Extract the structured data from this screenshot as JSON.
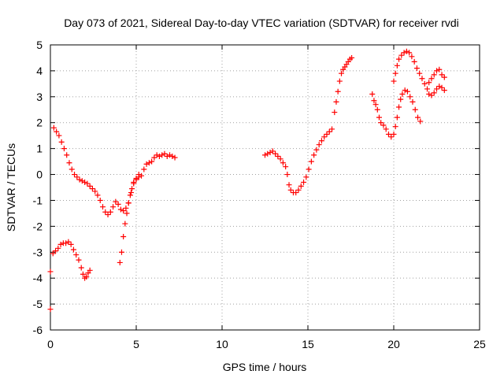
{
  "chart_data": {
    "type": "scatter",
    "title": "Day 073 of 2021, Sidereal Day-to-day VTEC variation (SDTVAR) for receiver rvdi",
    "xlabel": "GPS time / hours",
    "ylabel": "SDTVAR / TECUs",
    "xlim": [
      0,
      25
    ],
    "ylim": [
      -6,
      5
    ],
    "x_ticks": [
      0,
      5,
      10,
      15,
      20,
      25
    ],
    "y_ticks": [
      -6,
      -5,
      -4,
      -3,
      -2,
      -1,
      0,
      1,
      2,
      3,
      4,
      5
    ],
    "grid": true,
    "legend": "none",
    "marker": "plus",
    "color": "#ff0000",
    "series": [
      {
        "points": [
          [
            0.0,
            -3.75
          ],
          [
            0.0,
            -5.2
          ],
          [
            0.15,
            -3.05
          ],
          [
            0.3,
            -2.95
          ],
          [
            0.45,
            -2.85
          ],
          [
            0.6,
            -2.7
          ],
          [
            0.75,
            -2.65
          ],
          [
            0.9,
            -2.65
          ],
          [
            1.05,
            -2.6
          ],
          [
            1.2,
            -2.7
          ],
          [
            1.35,
            -2.9
          ],
          [
            1.5,
            -3.1
          ],
          [
            1.65,
            -3.3
          ],
          [
            1.8,
            -3.6
          ],
          [
            1.9,
            -3.85
          ],
          [
            2.0,
            -4.0
          ],
          [
            2.1,
            -3.95
          ],
          [
            2.2,
            -3.8
          ],
          [
            2.3,
            -3.7
          ],
          [
            0.2,
            1.8
          ],
          [
            0.35,
            1.65
          ],
          [
            0.5,
            1.5
          ],
          [
            0.65,
            1.25
          ],
          [
            0.8,
            1.0
          ],
          [
            0.95,
            0.75
          ],
          [
            1.1,
            0.45
          ],
          [
            1.25,
            0.2
          ],
          [
            1.4,
            0.0
          ],
          [
            1.55,
            -0.1
          ],
          [
            1.7,
            -0.2
          ],
          [
            1.85,
            -0.25
          ],
          [
            2.0,
            -0.3
          ],
          [
            2.15,
            -0.35
          ],
          [
            2.3,
            -0.45
          ],
          [
            2.45,
            -0.55
          ],
          [
            2.6,
            -0.65
          ],
          [
            2.75,
            -0.8
          ],
          [
            2.9,
            -1.0
          ],
          [
            3.05,
            -1.25
          ],
          [
            3.2,
            -1.45
          ],
          [
            3.35,
            -1.55
          ],
          [
            3.5,
            -1.45
          ],
          [
            3.65,
            -1.25
          ],
          [
            3.8,
            -1.05
          ],
          [
            3.95,
            -1.15
          ],
          [
            4.1,
            -1.35
          ],
          [
            4.25,
            -1.4
          ],
          [
            4.4,
            -1.3
          ],
          [
            4.55,
            -1.1
          ],
          [
            4.7,
            -0.7
          ],
          [
            4.85,
            -0.35
          ],
          [
            5.0,
            -0.2
          ],
          [
            5.15,
            -0.1
          ],
          [
            4.05,
            -3.4
          ],
          [
            4.15,
            -3.0
          ],
          [
            4.25,
            -2.4
          ],
          [
            4.35,
            -1.9
          ],
          [
            4.45,
            -1.5
          ],
          [
            4.55,
            -1.1
          ],
          [
            4.65,
            -0.8
          ],
          [
            4.75,
            -0.55
          ],
          [
            4.85,
            -0.3
          ],
          [
            5.0,
            -0.15
          ],
          [
            5.15,
            0.0
          ],
          [
            5.3,
            -0.05
          ],
          [
            5.45,
            0.2
          ],
          [
            5.6,
            0.4
          ],
          [
            5.75,
            0.45
          ],
          [
            5.9,
            0.5
          ],
          [
            6.05,
            0.65
          ],
          [
            6.2,
            0.75
          ],
          [
            6.35,
            0.7
          ],
          [
            6.5,
            0.75
          ],
          [
            6.65,
            0.8
          ],
          [
            6.8,
            0.7
          ],
          [
            6.95,
            0.75
          ],
          [
            7.1,
            0.7
          ],
          [
            7.25,
            0.65
          ],
          [
            12.5,
            0.75
          ],
          [
            12.65,
            0.8
          ],
          [
            12.8,
            0.85
          ],
          [
            12.95,
            0.9
          ],
          [
            13.1,
            0.8
          ],
          [
            13.25,
            0.7
          ],
          [
            13.4,
            0.6
          ],
          [
            13.55,
            0.45
          ],
          [
            13.7,
            0.3
          ],
          [
            13.8,
            0.0
          ],
          [
            13.9,
            -0.4
          ],
          [
            14.0,
            -0.6
          ],
          [
            14.15,
            -0.7
          ],
          [
            14.3,
            -0.7
          ],
          [
            14.45,
            -0.6
          ],
          [
            14.6,
            -0.45
          ],
          [
            14.75,
            -0.3
          ],
          [
            14.9,
            -0.1
          ],
          [
            15.05,
            0.2
          ],
          [
            15.2,
            0.5
          ],
          [
            15.35,
            0.75
          ],
          [
            15.5,
            0.95
          ],
          [
            15.65,
            1.15
          ],
          [
            15.8,
            1.3
          ],
          [
            15.95,
            1.45
          ],
          [
            16.1,
            1.55
          ],
          [
            16.25,
            1.65
          ],
          [
            16.4,
            1.75
          ],
          [
            16.55,
            2.4
          ],
          [
            16.65,
            2.8
          ],
          [
            16.75,
            3.2
          ],
          [
            16.85,
            3.6
          ],
          [
            16.95,
            3.9
          ],
          [
            17.05,
            4.05
          ],
          [
            17.15,
            4.15
          ],
          [
            17.25,
            4.25
          ],
          [
            17.35,
            4.35
          ],
          [
            17.45,
            4.45
          ],
          [
            17.55,
            4.5
          ],
          [
            18.75,
            3.1
          ],
          [
            18.85,
            2.85
          ],
          [
            18.95,
            2.7
          ],
          [
            19.05,
            2.5
          ],
          [
            19.15,
            2.2
          ],
          [
            19.25,
            2.0
          ],
          [
            19.4,
            1.9
          ],
          [
            19.55,
            1.75
          ],
          [
            19.7,
            1.55
          ],
          [
            19.85,
            1.45
          ],
          [
            20.0,
            1.55
          ],
          [
            20.1,
            1.85
          ],
          [
            20.2,
            2.2
          ],
          [
            20.3,
            2.6
          ],
          [
            20.4,
            2.9
          ],
          [
            20.5,
            3.1
          ],
          [
            20.65,
            3.25
          ],
          [
            20.8,
            3.2
          ],
          [
            20.95,
            3.0
          ],
          [
            21.1,
            2.8
          ],
          [
            21.25,
            2.5
          ],
          [
            21.4,
            2.2
          ],
          [
            21.55,
            2.05
          ],
          [
            20.0,
            3.6
          ],
          [
            20.1,
            3.9
          ],
          [
            20.2,
            4.2
          ],
          [
            20.3,
            4.45
          ],
          [
            20.45,
            4.6
          ],
          [
            20.6,
            4.7
          ],
          [
            20.75,
            4.75
          ],
          [
            20.9,
            4.7
          ],
          [
            21.05,
            4.55
          ],
          [
            21.2,
            4.35
          ],
          [
            21.35,
            4.1
          ],
          [
            21.5,
            3.9
          ],
          [
            21.65,
            3.7
          ],
          [
            21.8,
            3.5
          ],
          [
            21.95,
            3.3
          ],
          [
            22.05,
            3.1
          ],
          [
            22.2,
            3.05
          ],
          [
            22.35,
            3.15
          ],
          [
            22.5,
            3.3
          ],
          [
            22.65,
            3.4
          ],
          [
            22.8,
            3.35
          ],
          [
            22.95,
            3.25
          ],
          [
            22.05,
            3.55
          ],
          [
            22.2,
            3.7
          ],
          [
            22.35,
            3.85
          ],
          [
            22.5,
            4.0
          ],
          [
            22.65,
            4.05
          ],
          [
            22.8,
            3.85
          ],
          [
            22.95,
            3.75
          ]
        ]
      }
    ]
  }
}
